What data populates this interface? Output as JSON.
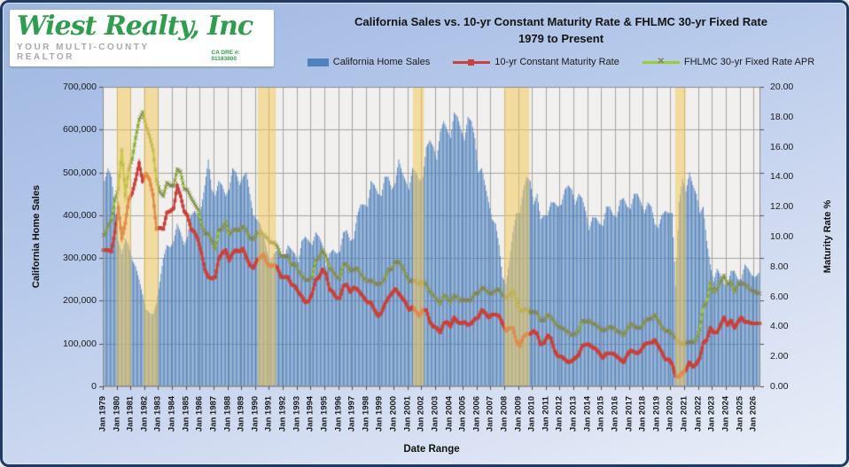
{
  "logo": {
    "brand": "Wiest Realty, Inc",
    "tagline": "YOUR MULTI-COUNTY REALTOR",
    "license": "CA DRE #: 01183800",
    "brand_color": "#2e9d4d"
  },
  "chart_data": {
    "type": "bar+line combo",
    "title_line1": "California  Sales vs. 10-yr Constant Maturity Rate & FHLMC 30-yr Fixed  Rate",
    "title_line2": "1979 to Present",
    "x_axis": {
      "label": "Date Range",
      "tick_prefix": "Jan",
      "start_year": 1979,
      "end_year": 2026,
      "grid": true
    },
    "y_left": {
      "label": "California Home Sales",
      "min": 0,
      "max": 700000,
      "step": 100000,
      "grid": true
    },
    "y_right": {
      "label": "Maturity Rate %",
      "min": 0,
      "max": 20,
      "step": 2
    },
    "legend_position": "top",
    "plot_bg": "#f1f0ee",
    "grid_color": "#a3a3a3",
    "band_color": "rgba(242,203,92,0.55)",
    "recession_bands": [
      {
        "from": 1980.0,
        "to": 1981.05
      },
      {
        "from": 1981.95,
        "to": 1983.0
      },
      {
        "from": 1990.2,
        "to": 1991.5
      },
      {
        "from": 2001.4,
        "to": 2002.2
      },
      {
        "from": 2008.0,
        "to": 2009.8
      },
      {
        "from": 2020.35,
        "to": 2021.1
      }
    ],
    "resolution": "quarterly estimates read from chart, Q1 1979 through Q2 2026",
    "series": [
      {
        "name": "California Home Sales",
        "type": "bar",
        "axis": "left",
        "color": "#4f81bd",
        "unit": "homes (thousands)",
        "quarterly_values": [
          480,
          510,
          490,
          420,
          340,
          310,
          345,
          330,
          295,
          280,
          250,
          215,
          180,
          172,
          168,
          195,
          245,
          300,
          330,
          325,
          340,
          380,
          360,
          330,
          350,
          400,
          410,
          400,
          420,
          470,
          530,
          460,
          445,
          480,
          470,
          445,
          460,
          510,
          500,
          470,
          490,
          500,
          450,
          400,
          390,
          380,
          350,
          315,
          290,
          310,
          320,
          300,
          300,
          330,
          320,
          310,
          290,
          340,
          350,
          340,
          330,
          360,
          350,
          330,
          280,
          310,
          320,
          310,
          315,
          360,
          365,
          340,
          345,
          400,
          425,
          425,
          420,
          480,
          470,
          450,
          445,
          490,
          490,
          460,
          475,
          530,
          500,
          480,
          460,
          510,
          500,
          480,
          490,
          560,
          575,
          560,
          530,
          595,
          620,
          600,
          580,
          640,
          630,
          600,
          575,
          630,
          620,
          580,
          500,
          510,
          470,
          430,
          390,
          380,
          330,
          255,
          240,
          295,
          360,
          405,
          405,
          460,
          490,
          480,
          425,
          450,
          390,
          400,
          400,
          430,
          430,
          420,
          425,
          460,
          470,
          460,
          425,
          450,
          440,
          410,
          365,
          395,
          395,
          380,
          375,
          420,
          420,
          400,
          395,
          435,
          440,
          420,
          415,
          450,
          450,
          430,
          405,
          430,
          420,
          380,
          370,
          400,
          410,
          405,
          405,
          235,
          430,
          485,
          455,
          500,
          470,
          450,
          405,
          420,
          340,
          285,
          245,
          275,
          260,
          240,
          235,
          270,
          270,
          250,
          250,
          285,
          275,
          260,
          255,
          265
        ]
      },
      {
        "name": "10-yr Constant Maturity Rate",
        "type": "line",
        "axis": "right",
        "color": "#c9413a",
        "marker": "square",
        "unit": "percent",
        "quarterly_values": [
          9.1,
          9.1,
          9.0,
          10.3,
          11.9,
          9.9,
          10.9,
          12.5,
          12.9,
          13.8,
          14.9,
          13.7,
          14.2,
          13.8,
          12.8,
          10.5,
          10.6,
          10.5,
          11.6,
          11.7,
          11.9,
          13.4,
          12.7,
          11.7,
          11.4,
          10.5,
          10.3,
          9.8,
          8.9,
          7.8,
          7.3,
          7.2,
          7.3,
          8.5,
          8.9,
          9.1,
          8.4,
          8.9,
          9.1,
          9.0,
          9.2,
          8.6,
          8.1,
          7.9,
          8.4,
          8.6,
          8.8,
          8.2,
          8.0,
          8.1,
          7.9,
          7.3,
          7.3,
          7.3,
          6.8,
          6.7,
          6.3,
          6.0,
          5.6,
          5.7,
          6.2,
          7.1,
          7.3,
          7.8,
          7.5,
          6.5,
          6.3,
          5.9,
          5.9,
          6.7,
          6.8,
          6.3,
          6.6,
          6.5,
          6.2,
          5.9,
          5.6,
          5.6,
          5.1,
          4.7,
          4.9,
          5.5,
          5.9,
          6.2,
          6.5,
          6.2,
          5.9,
          5.6,
          5.1,
          5.3,
          5.0,
          4.7,
          5.1,
          5.1,
          4.3,
          4.0,
          3.9,
          3.6,
          4.2,
          4.3,
          4.0,
          4.6,
          4.3,
          4.2,
          4.3,
          4.1,
          4.2,
          4.5,
          4.6,
          5.1,
          4.9,
          4.6,
          4.8,
          4.8,
          4.7,
          4.2,
          3.7,
          3.9,
          3.9,
          3.0,
          2.7,
          3.3,
          3.5,
          3.5,
          3.7,
          3.5,
          2.8,
          2.9,
          3.4,
          3.2,
          2.4,
          2.0,
          2.0,
          1.8,
          1.6,
          1.7,
          1.9,
          2.1,
          2.7,
          2.8,
          2.8,
          2.6,
          2.5,
          2.2,
          1.9,
          2.2,
          2.2,
          2.2,
          2.0,
          1.8,
          1.6,
          2.1,
          2.4,
          2.3,
          2.2,
          2.4,
          2.8,
          2.9,
          2.9,
          3.1,
          2.7,
          2.3,
          1.8,
          1.8,
          1.5,
          0.7,
          0.65,
          0.9,
          1.1,
          1.6,
          1.3,
          1.5,
          1.9,
          2.9,
          3.1,
          3.9,
          3.6,
          3.6,
          4.1,
          4.6,
          4.1,
          4.4,
          3.9,
          4.3,
          4.6,
          4.3,
          4.3,
          4.2,
          4.2,
          4.2
        ]
      },
      {
        "name": "FHLMC 30-yr Fixed Rate APR",
        "type": "line",
        "axis": "right",
        "color": "#9acd32",
        "marker": "x",
        "marker_color": "#80805a",
        "unit": "percent",
        "quarterly_values": [
          10.1,
          10.7,
          11.1,
          12.4,
          13.2,
          15.8,
          12.8,
          14.5,
          15.2,
          16.6,
          17.8,
          18.3,
          17.4,
          16.7,
          15.8,
          13.8,
          13.0,
          12.7,
          13.6,
          13.4,
          13.4,
          14.5,
          14.3,
          13.2,
          13.1,
          12.6,
          12.2,
          11.8,
          10.8,
          10.2,
          10.2,
          9.7,
          9.2,
          10.4,
          10.5,
          11.0,
          10.1,
          10.4,
          10.5,
          10.4,
          10.7,
          10.4,
          9.9,
          9.8,
          10.2,
          10.3,
          10.1,
          9.9,
          9.6,
          9.6,
          9.3,
          8.7,
          8.7,
          8.7,
          8.1,
          8.2,
          7.7,
          7.4,
          7.1,
          7.1,
          7.3,
          8.4,
          8.6,
          9.1,
          8.7,
          7.9,
          7.7,
          7.3,
          7.2,
          8.1,
          8.2,
          7.7,
          7.8,
          7.9,
          7.5,
          7.2,
          7.0,
          7.1,
          6.9,
          6.8,
          6.9,
          7.2,
          7.8,
          7.8,
          8.3,
          8.3,
          8.0,
          7.5,
          7.0,
          7.1,
          7.0,
          6.8,
          7.0,
          6.8,
          6.3,
          6.1,
          5.8,
          5.5,
          6.1,
          5.9,
          5.6,
          6.1,
          5.9,
          5.7,
          5.8,
          5.7,
          5.8,
          6.2,
          6.2,
          6.6,
          6.5,
          6.2,
          6.2,
          6.4,
          6.5,
          6.1,
          5.9,
          6.1,
          6.4,
          5.8,
          5.1,
          5.0,
          5.2,
          4.9,
          5.0,
          4.9,
          4.4,
          4.4,
          4.8,
          4.6,
          4.3,
          4.0,
          3.9,
          3.8,
          3.6,
          3.4,
          3.5,
          3.7,
          4.4,
          4.3,
          4.4,
          4.2,
          4.1,
          3.9,
          3.7,
          3.8,
          4.0,
          3.9,
          3.7,
          3.6,
          3.4,
          3.8,
          4.2,
          4.0,
          3.9,
          3.9,
          4.3,
          4.5,
          4.5,
          4.8,
          4.4,
          4.0,
          3.7,
          3.7,
          3.5,
          3.2,
          2.9,
          2.8,
          2.9,
          3.0,
          2.9,
          3.1,
          3.8,
          5.3,
          5.6,
          6.9,
          6.3,
          6.5,
          7.0,
          7.4,
          6.8,
          7.0,
          6.3,
          6.8,
          6.9,
          6.8,
          6.6,
          6.4,
          6.3,
          6.2
        ]
      }
    ]
  }
}
